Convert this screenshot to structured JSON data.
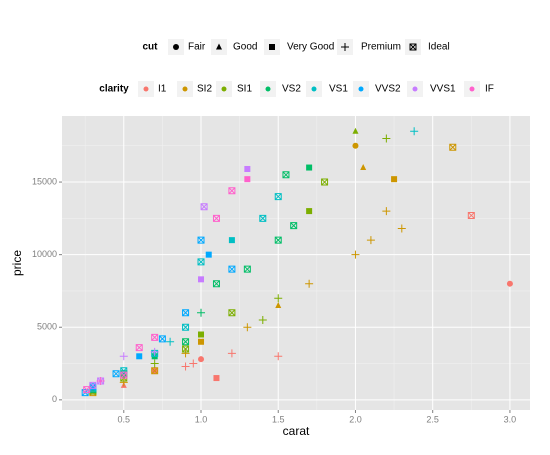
{
  "chart_data": {
    "type": "scatter",
    "x_label": "carat",
    "y_label": "price",
    "xlim": [
      0.1,
      3.13
    ],
    "ylim": [
      -700,
      19550
    ],
    "xticks": [
      {
        "value": 0.5,
        "label": "0.5"
      },
      {
        "value": 1,
        "label": "1.0"
      },
      {
        "value": 1.5,
        "label": "1.5"
      },
      {
        "value": 2,
        "label": "2.0"
      },
      {
        "value": 2.5,
        "label": "2.5"
      },
      {
        "value": 3,
        "label": "3.0"
      }
    ],
    "yticks": [
      0,
      5000,
      10000,
      15000
    ],
    "grid": true,
    "shape_legend": {
      "title": "cut",
      "items": [
        {
          "name": "Fair",
          "shape": "circle"
        },
        {
          "name": "Good",
          "shape": "triangle"
        },
        {
          "name": "Very Good",
          "shape": "square"
        },
        {
          "name": "Premium",
          "shape": "plus"
        },
        {
          "name": "Ideal",
          "shape": "square-x"
        }
      ]
    },
    "color_legend_title": "clarity",
    "series": [
      {
        "name": "I1",
        "color": "#F8766D",
        "x": [
          3.0,
          0.9,
          1.0,
          1.5,
          0.7,
          1.2,
          0.5,
          0.95,
          1.1,
          2.75
        ],
        "values": [
          8000,
          2300,
          2800,
          3000,
          2000,
          3200,
          1000,
          2500,
          1500,
          12700
        ],
        "cut": [
          "Fair",
          "Premium",
          "Fair",
          "Premium",
          "Fair",
          "Premium",
          "Good",
          "Premium",
          "Very Good",
          "Ideal"
        ]
      },
      {
        "name": "SI2",
        "color": "#CD9600",
        "x": [
          2.0,
          2.2,
          2.63,
          2.0,
          2.3,
          1.5,
          1.3,
          1.0,
          0.9,
          0.7,
          0.5,
          2.05,
          2.25,
          2.1,
          1.7,
          0.3
        ],
        "values": [
          17500,
          13000,
          17400,
          10000,
          11800,
          6500,
          5000,
          4000,
          3200,
          2000,
          1200,
          16000,
          15200,
          11000,
          8000,
          500
        ],
        "cut": [
          "Fair",
          "Premium",
          "Ideal",
          "Premium",
          "Premium",
          "Good",
          "Premium",
          "Very Good",
          "Premium",
          "Ideal",
          "Premium",
          "Good",
          "Very Good",
          "Premium",
          "Premium",
          "Ideal"
        ]
      },
      {
        "name": "SI1",
        "color": "#7CAE00",
        "x": [
          2.0,
          2.2,
          1.8,
          1.5,
          1.2,
          1.0,
          0.9,
          0.7,
          0.5,
          0.3,
          1.7,
          1.4
        ],
        "values": [
          18500,
          18000,
          15000,
          7000,
          6000,
          4500,
          3500,
          2500,
          1500,
          600,
          13000,
          5500
        ],
        "cut": [
          "Good",
          "Premium",
          "Ideal",
          "Premium",
          "Ideal",
          "Very Good",
          "Ideal",
          "Premium",
          "Ideal",
          "Ideal",
          "Very Good",
          "Premium"
        ]
      },
      {
        "name": "VS2",
        "color": "#00BE67",
        "x": [
          1.7,
          1.6,
          1.5,
          1.1,
          1.0,
          0.9,
          0.7,
          0.5,
          0.3,
          1.3,
          1.55
        ],
        "values": [
          16000,
          12000,
          11000,
          8000,
          6000,
          4000,
          3000,
          1800,
          700,
          9000,
          15500
        ],
        "cut": [
          "Very Good",
          "Ideal",
          "Ideal",
          "Ideal",
          "Premium",
          "Ideal",
          "Very Good",
          "Ideal",
          "Ideal",
          "Ideal",
          "Ideal"
        ]
      },
      {
        "name": "VS1",
        "color": "#00BFC4",
        "x": [
          2.38,
          1.5,
          1.2,
          1.0,
          0.9,
          0.8,
          0.7,
          0.5,
          0.3,
          1.4
        ],
        "values": [
          18500,
          14000,
          11000,
          9500,
          5000,
          4000,
          3200,
          2000,
          800,
          12500
        ],
        "cut": [
          "Premium",
          "Ideal",
          "Very Good",
          "Ideal",
          "Ideal",
          "Premium",
          "Ideal",
          "Ideal",
          "Ideal",
          "Ideal"
        ]
      },
      {
        "name": "VVS2",
        "color": "#00A9FF",
        "x": [
          1.0,
          1.05,
          0.9,
          0.75,
          0.6,
          0.45,
          0.3,
          0.25,
          1.2
        ],
        "values": [
          11000,
          10000,
          6000,
          4200,
          3000,
          1800,
          900,
          500,
          9000
        ],
        "cut": [
          "Ideal",
          "Very Good",
          "Ideal",
          "Ideal",
          "Very Good",
          "Ideal",
          "Ideal",
          "Ideal",
          "Ideal"
        ]
      },
      {
        "name": "VVS1",
        "color": "#C77CFF",
        "x": [
          1.02,
          1.3,
          0.7,
          0.5,
          0.35,
          0.3,
          1.0
        ],
        "values": [
          13300,
          15900,
          3300,
          3000,
          1300,
          1000,
          8300
        ],
        "cut": [
          "Ideal",
          "Very Good",
          "Premium",
          "Premium",
          "Ideal",
          "Ideal",
          "Very Good"
        ]
      },
      {
        "name": "IF",
        "color": "#FF61CC",
        "x": [
          1.3,
          1.2,
          0.7,
          0.6,
          0.5,
          0.35,
          0.26,
          1.1
        ],
        "values": [
          15200,
          14400,
          4300,
          3600,
          1700,
          1300,
          700,
          12500
        ],
        "cut": [
          "Very Good",
          "Ideal",
          "Ideal",
          "Ideal",
          "Ideal",
          "Premium",
          "Ideal",
          "Ideal"
        ]
      }
    ]
  }
}
